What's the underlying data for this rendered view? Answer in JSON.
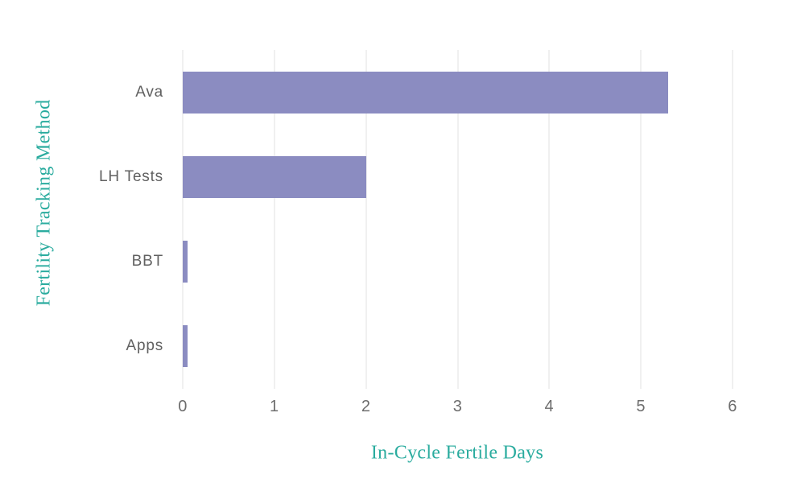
{
  "chart_data": {
    "type": "bar",
    "orientation": "horizontal",
    "title": "",
    "xlabel": "In-Cycle Fertile Days",
    "ylabel": "Fertility Tracking Method",
    "categories": [
      "Ava",
      "LH Tests",
      "BBT",
      "Apps"
    ],
    "values": [
      5.3,
      2.0,
      0.05,
      0.05
    ],
    "xlim": [
      0,
      6
    ],
    "xticks": [
      0,
      1,
      2,
      3,
      4,
      5,
      6
    ],
    "grid": "vertical-only",
    "legend_position": "none",
    "colors": {
      "bar": "#8b8cc1",
      "axis_title": "#2bac9f",
      "tick_label": "#6d6d6d",
      "category_label": "#616161",
      "gridline": "#e2e2e2",
      "background": "#ffffff"
    }
  }
}
